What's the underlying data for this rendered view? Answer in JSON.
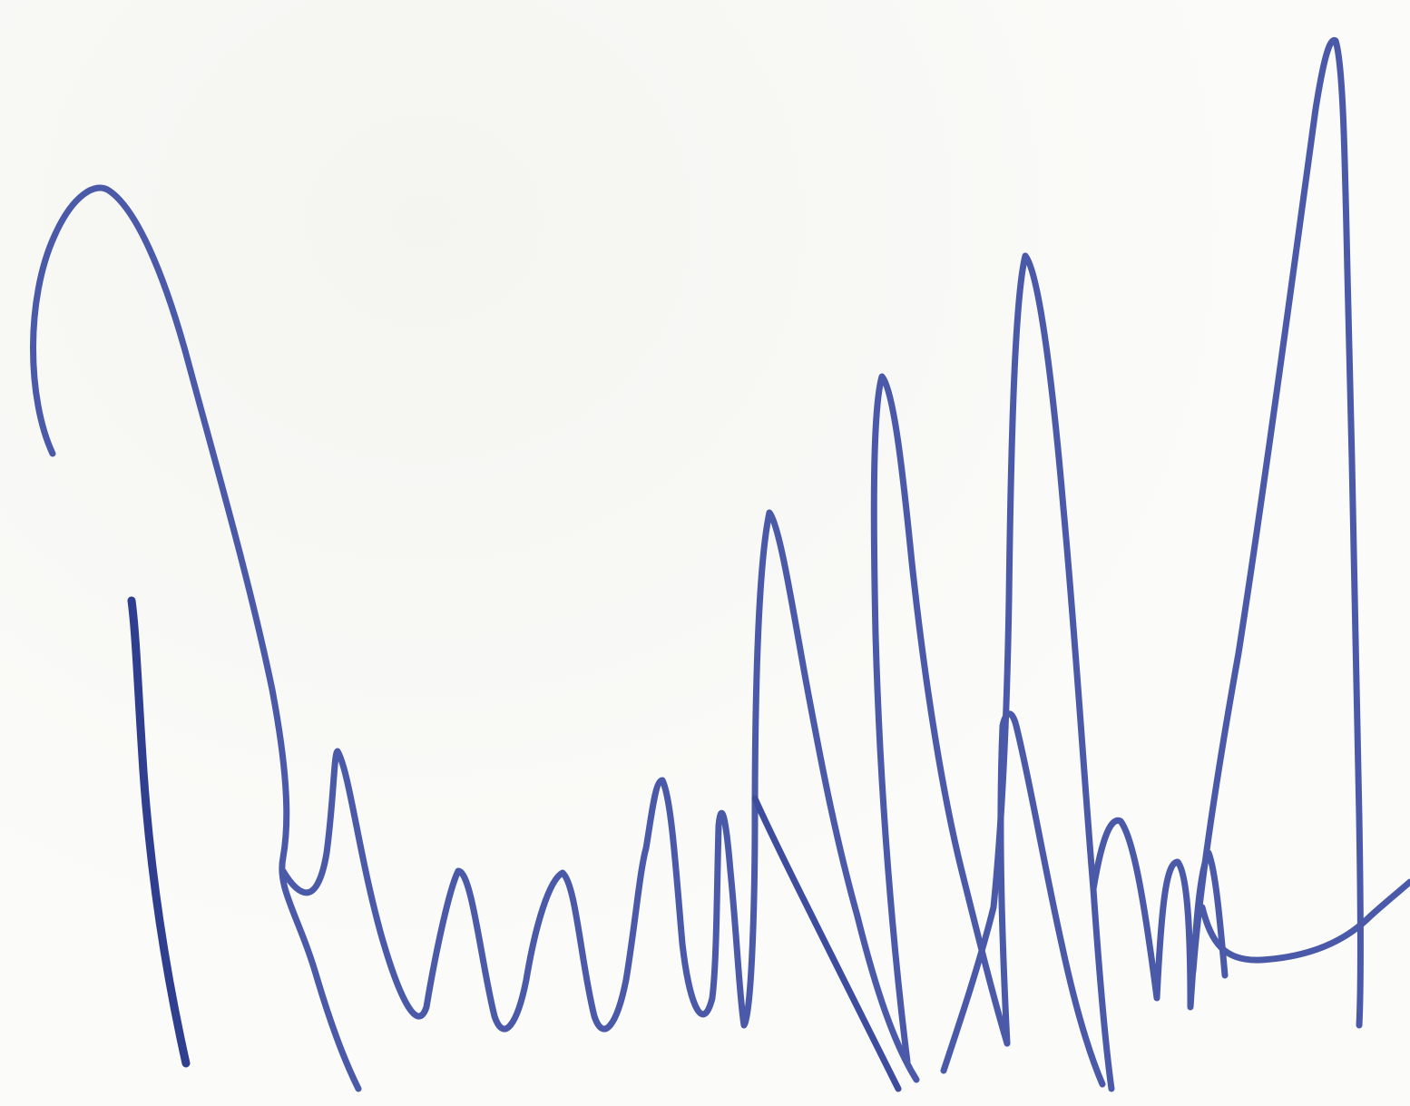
{
  "document": {
    "printed_text_partial": "",
    "ink_color": "#4b5aa8",
    "ink_color_dark": "#2f3e8e",
    "print_color": "#b9b9b9",
    "paper_color": "#fbfbf9"
  },
  "signature": {
    "kind": "handwritten-signature",
    "stroke_count": 3
  }
}
